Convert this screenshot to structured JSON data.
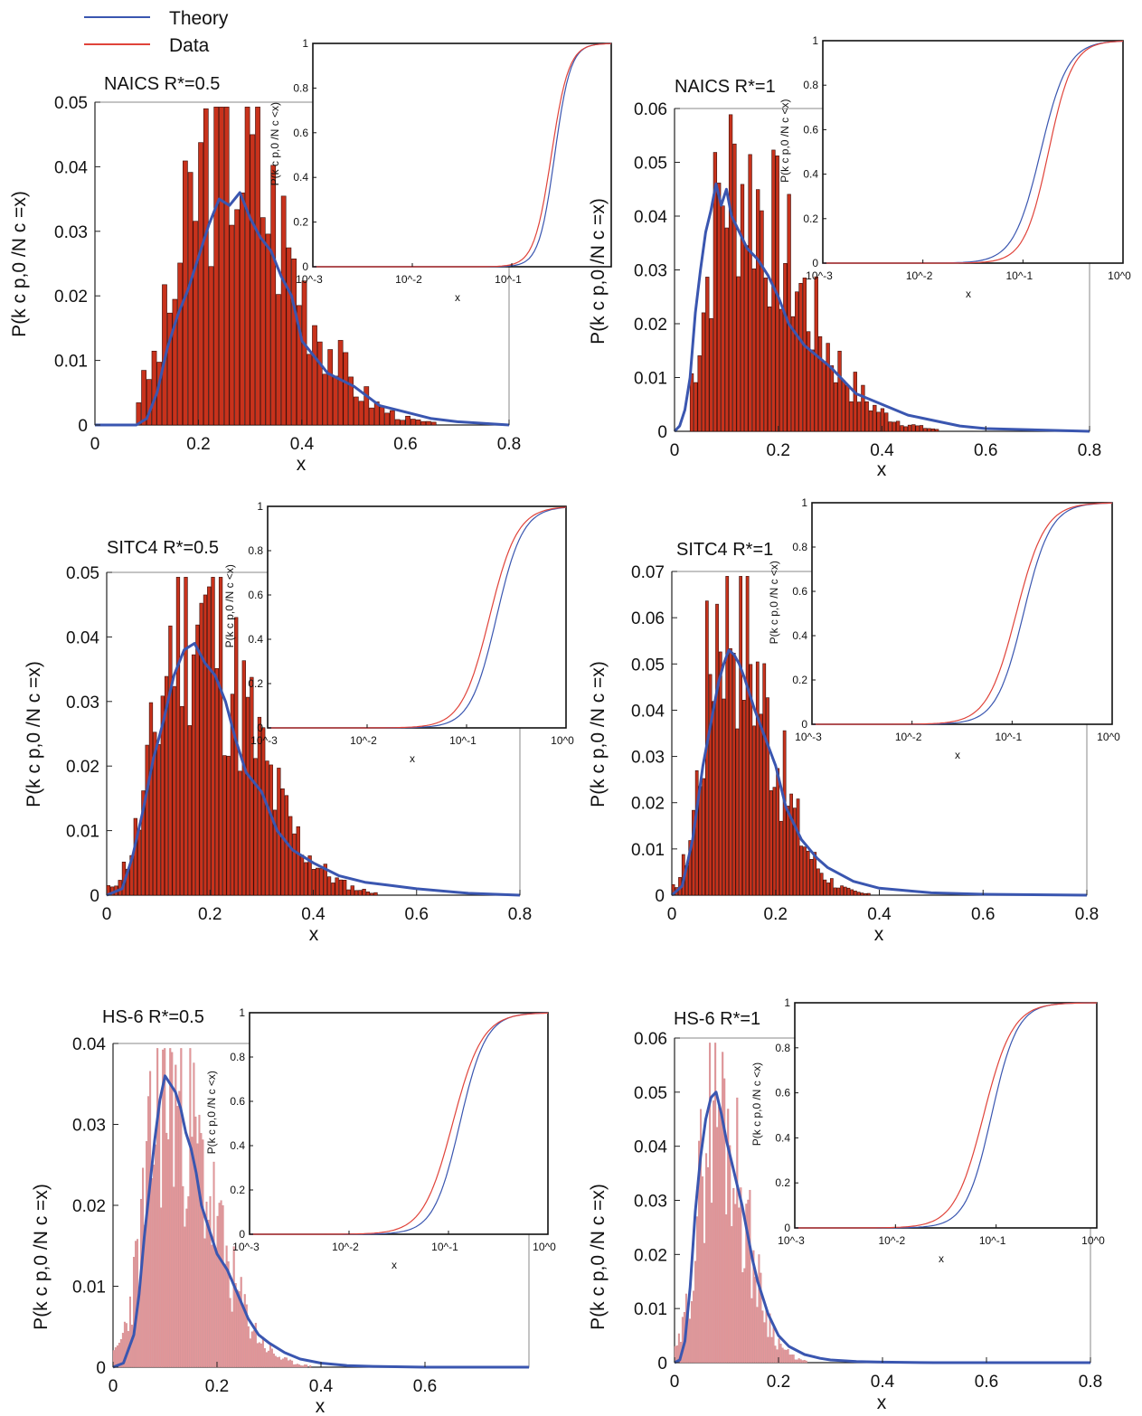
{
  "legend": {
    "entries": [
      {
        "label": "Theory",
        "color": "#3a56b0"
      },
      {
        "label": "Data",
        "color": "#e0433a"
      }
    ]
  },
  "colors": {
    "theory": "#3a56b0",
    "data_line": "#e0433a",
    "bar_dark": "#c8321c",
    "bar_light": "#e3979a"
  },
  "panels": [
    {
      "title": "NAICS R*=0.5",
      "xlabel": "x",
      "ylabel": "P(k c p,0 /N c =x)",
      "inset": {
        "ylabel": "P(k c p,0 /N c <x)",
        "xlabel": "x"
      }
    },
    {
      "title": "NAICS R*=1",
      "xlabel": "x",
      "ylabel": "P(k c p,0 /N c =x)",
      "inset": {
        "ylabel": "P(k c p,0 /N c <x)",
        "xlabel": "x"
      }
    },
    {
      "title": "SITC4 R*=0.5",
      "xlabel": "x",
      "ylabel": "P(k c p,0 /N c =x)",
      "inset": {
        "ylabel": "P(k c p,0 /N c <x)",
        "xlabel": "x"
      }
    },
    {
      "title": "SITC4 R*=1",
      "xlabel": "x",
      "ylabel": "P(k c p,0 /N c =x)",
      "inset": {
        "ylabel": "P(k c p,0 /N c <x)",
        "xlabel": "x"
      }
    },
    {
      "title": "HS-6 R*=0.5",
      "xlabel": "x",
      "ylabel": "P(k c p,0 /N c =x)",
      "inset": {
        "ylabel": "P(k c p,0 /N c <x)",
        "xlabel": "x"
      }
    },
    {
      "title": "HS-6 R*=1",
      "xlabel": "x",
      "ylabel": "P(k c p,0 /N c =x)",
      "inset": {
        "ylabel": "P(k c p,0 /N c <x)",
        "xlabel": "x"
      }
    }
  ],
  "chart_data": [
    {
      "type": "bar",
      "title": "NAICS R*=0.5",
      "xlabel": "x",
      "ylabel": "P(k c p,0 /N c =x)",
      "xlim": [
        0,
        0.8
      ],
      "ylim": [
        0,
        0.05
      ],
      "xticks": [
        "0",
        "0.2",
        "0.4",
        "0.6",
        "0.8"
      ],
      "yticks": [
        "0",
        "0.01",
        "0.02",
        "0.03",
        "0.04",
        "0.05"
      ],
      "bar_style": "dark",
      "histogram": {
        "bin_start": 0.08,
        "bin_width": 0.01,
        "peak_x": 0.24,
        "peak_y": 0.045,
        "spread_left": 0.075,
        "spread_right": 0.13,
        "n_bins": 60,
        "seed": 3
      },
      "series": [
        {
          "name": "Theory",
          "kind": "line",
          "color": "#3a56b0",
          "x": [
            0,
            0.08,
            0.1,
            0.12,
            0.14,
            0.16,
            0.18,
            0.2,
            0.22,
            0.24,
            0.26,
            0.28,
            0.3,
            0.32,
            0.34,
            0.36,
            0.38,
            0.4,
            0.45,
            0.5,
            0.55,
            0.6,
            0.65,
            0.7,
            0.8
          ],
          "y": [
            0,
            0,
            0.001,
            0.005,
            0.012,
            0.017,
            0.021,
            0.026,
            0.031,
            0.035,
            0.034,
            0.036,
            0.032,
            0.029,
            0.027,
            0.023,
            0.02,
            0.013,
            0.008,
            0.006,
            0.003,
            0.002,
            0.001,
            0.0005,
            0
          ]
        },
        {
          "name": "Data",
          "kind": "histogram",
          "color": "#c8321c"
        }
      ],
      "inset": {
        "type": "line",
        "xscale": "log",
        "xlim": [
          0.001,
          1
        ],
        "ylim": [
          0,
          1
        ],
        "xticks": [
          "10^-3",
          "10^-2",
          "10^-1"
        ],
        "yticks": [
          "0",
          "0.2",
          "0.4",
          "0.6",
          "0.8",
          "1"
        ],
        "ylabel": "P(k c p,0 /N c <x)",
        "xlabel": "x",
        "series": [
          {
            "name": "Theory",
            "color": "#3a56b0",
            "median": 0.27,
            "slope": 5.5
          },
          {
            "name": "Data",
            "color": "#e0433a",
            "median": 0.25,
            "slope": 5.0
          }
        ]
      }
    },
    {
      "type": "bar",
      "title": "NAICS R*=1",
      "xlabel": "x",
      "ylabel": "P(k c p,0 /N c =x)",
      "xlim": [
        0,
        0.8
      ],
      "ylim": [
        0,
        0.06
      ],
      "xticks": [
        "0",
        "0.2",
        "0.4",
        "0.6",
        "0.8"
      ],
      "yticks": [
        "0",
        "0.01",
        "0.02",
        "0.03",
        "0.04",
        "0.05",
        "0.06"
      ],
      "bar_style": "dark",
      "histogram": {
        "bin_start": 0.03,
        "bin_width": 0.0075,
        "peak_x": 0.1,
        "peak_y": 0.047,
        "spread_left": 0.04,
        "spread_right": 0.13,
        "n_bins": 64,
        "seed": 7
      },
      "series": [
        {
          "name": "Theory",
          "kind": "line",
          "color": "#3a56b0",
          "x": [
            0,
            0.01,
            0.02,
            0.03,
            0.04,
            0.05,
            0.06,
            0.07,
            0.08,
            0.09,
            0.1,
            0.11,
            0.12,
            0.13,
            0.14,
            0.16,
            0.18,
            0.2,
            0.22,
            0.25,
            0.3,
            0.35,
            0.4,
            0.45,
            0.5,
            0.55,
            0.6,
            0.8
          ],
          "y": [
            0,
            0.001,
            0.004,
            0.01,
            0.022,
            0.03,
            0.037,
            0.041,
            0.046,
            0.042,
            0.045,
            0.04,
            0.038,
            0.036,
            0.034,
            0.032,
            0.029,
            0.025,
            0.02,
            0.016,
            0.012,
            0.007,
            0.005,
            0.003,
            0.002,
            0.001,
            0.0005,
            0
          ]
        },
        {
          "name": "Data",
          "kind": "histogram",
          "color": "#c8321c"
        }
      ],
      "inset": {
        "type": "line",
        "xscale": "log",
        "xlim": [
          0.001,
          1
        ],
        "ylim": [
          0,
          1
        ],
        "xticks": [
          "10^-3",
          "10^-2",
          "10^-1",
          "10^0"
        ],
        "yticks": [
          "0",
          "0.2",
          "0.4",
          "0.6",
          "0.8",
          "1"
        ],
        "ylabel": "P(k c p,0 /N c <x)",
        "xlabel": "x",
        "series": [
          {
            "name": "Theory",
            "color": "#3a56b0",
            "median": 0.15,
            "slope": 3.2
          },
          {
            "name": "Data",
            "color": "#e0433a",
            "median": 0.18,
            "slope": 3.6
          }
        ]
      }
    },
    {
      "type": "bar",
      "title": "SITC4 R*=0.5",
      "xlabel": "x",
      "ylabel": "P(k c p,0 /N c =x)",
      "xlim": [
        0,
        0.8
      ],
      "ylim": [
        0,
        0.05
      ],
      "xticks": [
        "0",
        "0.2",
        "0.4",
        "0.6",
        "0.8"
      ],
      "yticks": [
        "0",
        "0.01",
        "0.02",
        "0.03",
        "0.04",
        "0.05"
      ],
      "bar_style": "dark",
      "histogram": {
        "bin_start": 0.0,
        "bin_width": 0.0075,
        "peak_x": 0.15,
        "peak_y": 0.045,
        "spread_left": 0.055,
        "spread_right": 0.12,
        "n_bins": 70,
        "seed": 11
      },
      "series": [
        {
          "name": "Theory",
          "kind": "line",
          "color": "#3a56b0",
          "x": [
            0,
            0.03,
            0.05,
            0.07,
            0.09,
            0.11,
            0.13,
            0.15,
            0.17,
            0.19,
            0.21,
            0.23,
            0.25,
            0.27,
            0.3,
            0.33,
            0.36,
            0.4,
            0.45,
            0.5,
            0.55,
            0.6,
            0.7,
            0.8
          ],
          "y": [
            0,
            0.001,
            0.006,
            0.013,
            0.021,
            0.027,
            0.034,
            0.038,
            0.039,
            0.036,
            0.034,
            0.03,
            0.024,
            0.019,
            0.016,
            0.01,
            0.007,
            0.005,
            0.003,
            0.002,
            0.0015,
            0.001,
            0.0003,
            0
          ]
        },
        {
          "name": "Data",
          "kind": "histogram",
          "color": "#c8321c"
        }
      ],
      "inset": {
        "type": "line",
        "xscale": "log",
        "xlim": [
          0.001,
          1
        ],
        "ylim": [
          0,
          1
        ],
        "xticks": [
          "10^-3",
          "10^-2",
          "10^-1",
          "10^0"
        ],
        "yticks": [
          "0",
          "0.2",
          "0.4",
          "0.6",
          "0.8",
          "1"
        ],
        "ylabel": "P(k c p,0 /N c <x)",
        "xlabel": "x",
        "series": [
          {
            "name": "Theory",
            "color": "#3a56b0",
            "median": 0.2,
            "slope": 3.3
          },
          {
            "name": "Data",
            "color": "#e0433a",
            "median": 0.17,
            "slope": 3.1
          }
        ]
      }
    },
    {
      "type": "bar",
      "title": "SITC4 R*=1",
      "xlabel": "x",
      "ylabel": "P(k c p,0 /N c =x)",
      "xlim": [
        0,
        0.8
      ],
      "ylim": [
        0,
        0.07
      ],
      "xticks": [
        "0",
        "0.2",
        "0.4",
        "0.6",
        "0.8"
      ],
      "yticks": [
        "0",
        "0.01",
        "0.02",
        "0.03",
        "0.04",
        "0.05",
        "0.06",
        "0.07"
      ],
      "bar_style": "dark",
      "histogram": {
        "bin_start": 0.0,
        "bin_width": 0.0065,
        "peak_x": 0.095,
        "peak_y": 0.066,
        "spread_left": 0.035,
        "spread_right": 0.085,
        "n_bins": 72,
        "seed": 17
      },
      "series": [
        {
          "name": "Theory",
          "kind": "line",
          "color": "#3a56b0",
          "x": [
            0,
            0.02,
            0.04,
            0.06,
            0.08,
            0.09,
            0.1,
            0.11,
            0.12,
            0.13,
            0.14,
            0.16,
            0.18,
            0.2,
            0.22,
            0.25,
            0.28,
            0.3,
            0.35,
            0.4,
            0.5,
            0.6,
            0.8
          ],
          "y": [
            0,
            0.002,
            0.012,
            0.028,
            0.04,
            0.046,
            0.05,
            0.053,
            0.052,
            0.05,
            0.047,
            0.04,
            0.034,
            0.028,
            0.019,
            0.012,
            0.008,
            0.006,
            0.003,
            0.0015,
            0.0005,
            0.0002,
            0
          ]
        },
        {
          "name": "Data",
          "kind": "histogram",
          "color": "#c8321c"
        }
      ],
      "inset": {
        "type": "line",
        "xscale": "log",
        "xlim": [
          0.001,
          1
        ],
        "ylim": [
          0,
          1
        ],
        "xticks": [
          "10^-3",
          "10^-2",
          "10^-1",
          "10^0"
        ],
        "yticks": [
          "0",
          "0.2",
          "0.4",
          "0.6",
          "0.8",
          "1"
        ],
        "ylabel": "P(k c p,0 /N c <x)",
        "xlabel": "x",
        "series": [
          {
            "name": "Theory",
            "color": "#3a56b0",
            "median": 0.13,
            "slope": 3.2
          },
          {
            "name": "Data",
            "color": "#e0433a",
            "median": 0.11,
            "slope": 3.0
          }
        ]
      }
    },
    {
      "type": "bar",
      "title": "HS-6 R*=0.5",
      "xlabel": "x",
      "ylabel": "P(k c p,0 /N c =x)",
      "xlim": [
        0,
        0.8
      ],
      "ylim": [
        0,
        0.04
      ],
      "xticks": [
        "0",
        "0.2",
        "0.4",
        "0.6"
      ],
      "yticks": [
        "0",
        "0.01",
        "0.02",
        "0.03",
        "0.04"
      ],
      "bar_style": "light",
      "histogram": {
        "bin_start": 0.0,
        "bin_width": 0.0035,
        "peak_x": 0.1,
        "peak_y": 0.034,
        "spread_left": 0.04,
        "spread_right": 0.085,
        "n_bins": 140,
        "seed": 23
      },
      "series": [
        {
          "name": "Theory",
          "kind": "line",
          "color": "#3a56b0",
          "x": [
            0,
            0.02,
            0.04,
            0.05,
            0.06,
            0.07,
            0.08,
            0.09,
            0.1,
            0.11,
            0.12,
            0.13,
            0.14,
            0.15,
            0.16,
            0.17,
            0.18,
            0.2,
            0.22,
            0.24,
            0.26,
            0.28,
            0.3,
            0.33,
            0.36,
            0.4,
            0.45,
            0.5,
            0.6,
            0.8
          ],
          "y": [
            0,
            0.0005,
            0.004,
            0.009,
            0.016,
            0.022,
            0.028,
            0.033,
            0.036,
            0.035,
            0.034,
            0.032,
            0.029,
            0.027,
            0.024,
            0.02,
            0.018,
            0.014,
            0.012,
            0.009,
            0.006,
            0.004,
            0.003,
            0.0018,
            0.001,
            0.0005,
            0.0002,
            0.0001,
            0,
            0
          ]
        },
        {
          "name": "Data",
          "kind": "histogram",
          "color": "#e3979a"
        }
      ],
      "inset": {
        "type": "line",
        "xscale": "log",
        "xlim": [
          0.001,
          1
        ],
        "ylim": [
          0,
          1
        ],
        "xticks": [
          "10^-3",
          "10^-2",
          "10^-1",
          "10^0"
        ],
        "yticks": [
          "0",
          "0.2",
          "0.4",
          "0.6",
          "0.8",
          "1"
        ],
        "ylabel": "P(k c p,0 /N c <x)",
        "xlabel": "x",
        "series": [
          {
            "name": "Theory",
            "color": "#3a56b0",
            "median": 0.13,
            "slope": 3.3
          },
          {
            "name": "Data",
            "color": "#e0433a",
            "median": 0.11,
            "slope": 2.9
          }
        ]
      }
    },
    {
      "type": "bar",
      "title": "HS-6 R*=1",
      "xlabel": "x",
      "ylabel": "P(k c p,0 /N c =x)",
      "xlim": [
        0,
        0.8
      ],
      "ylim": [
        0,
        0.06
      ],
      "xticks": [
        "0",
        "0.2",
        "0.4",
        "0.6",
        "0.8"
      ],
      "yticks": [
        "0",
        "0.01",
        "0.02",
        "0.03",
        "0.04",
        "0.05",
        "0.06"
      ],
      "bar_style": "light",
      "histogram": {
        "bin_start": 0.0,
        "bin_width": 0.0035,
        "peak_x": 0.075,
        "peak_y": 0.049,
        "spread_left": 0.03,
        "spread_right": 0.055,
        "n_bins": 120,
        "seed": 29
      },
      "series": [
        {
          "name": "Theory",
          "kind": "line",
          "color": "#3a56b0",
          "x": [
            0,
            0.01,
            0.02,
            0.03,
            0.04,
            0.05,
            0.06,
            0.07,
            0.08,
            0.09,
            0.1,
            0.11,
            0.12,
            0.13,
            0.14,
            0.15,
            0.16,
            0.18,
            0.2,
            0.22,
            0.25,
            0.28,
            0.3,
            0.35,
            0.4,
            0.5,
            0.6,
            0.8
          ],
          "y": [
            0,
            0.0005,
            0.004,
            0.014,
            0.028,
            0.038,
            0.045,
            0.049,
            0.05,
            0.046,
            0.041,
            0.037,
            0.033,
            0.029,
            0.024,
            0.019,
            0.015,
            0.009,
            0.005,
            0.003,
            0.0015,
            0.0008,
            0.0005,
            0.0002,
            0.0001,
            0,
            0,
            0
          ]
        },
        {
          "name": "Data",
          "kind": "histogram",
          "color": "#e3979a"
        }
      ],
      "inset": {
        "type": "line",
        "xscale": "log",
        "xlim": [
          0.001,
          1
        ],
        "ylim": [
          0,
          1
        ],
        "xticks": [
          "10^-3",
          "10^-2",
          "10^-1",
          "10^0"
        ],
        "yticks": [
          "0",
          "0.2",
          "0.4",
          "0.6",
          "0.8",
          "1"
        ],
        "ylabel": "P(k c p,0 /N c <x)",
        "xlabel": "x",
        "series": [
          {
            "name": "Theory",
            "color": "#3a56b0",
            "median": 0.09,
            "slope": 3.4
          },
          {
            "name": "Data",
            "color": "#e0433a",
            "median": 0.075,
            "slope": 3.0
          }
        ]
      }
    }
  ]
}
